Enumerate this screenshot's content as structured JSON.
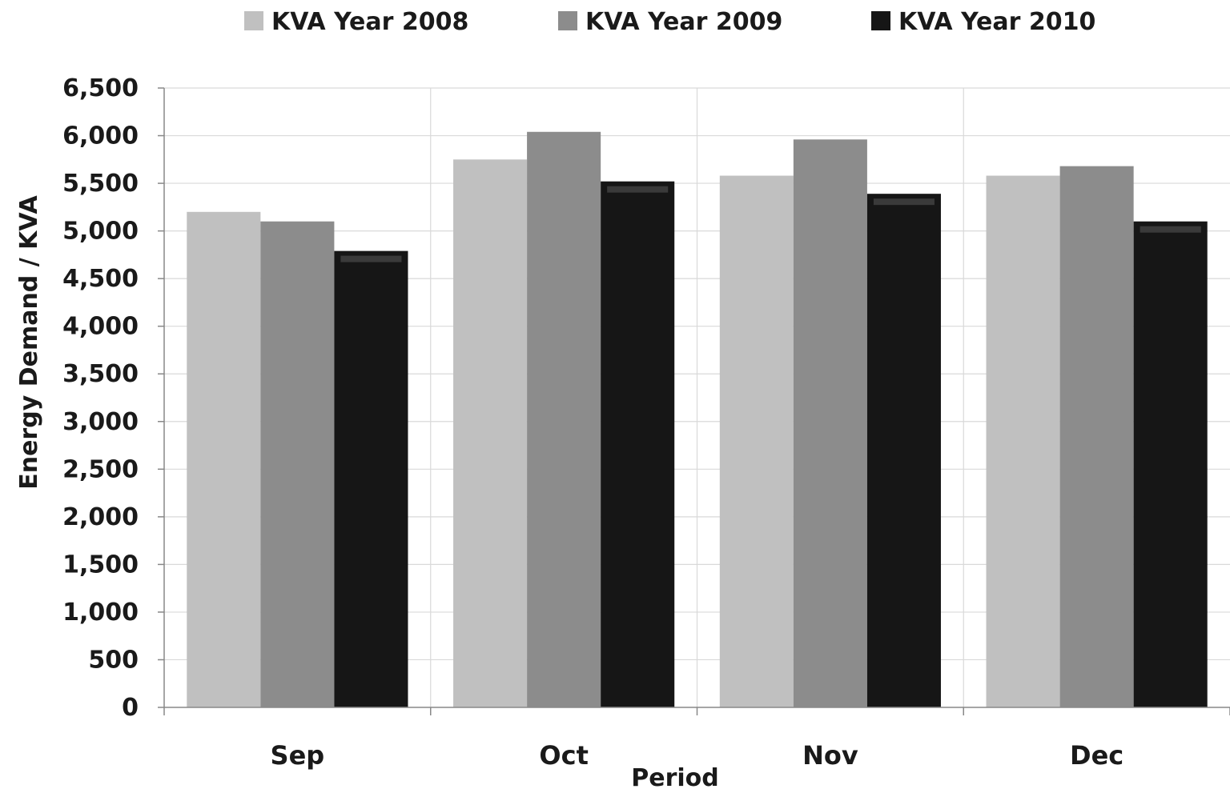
{
  "chart_data": {
    "type": "bar",
    "xlabel": "Period",
    "ylabel": "Energy Demand  / KVA",
    "categories": [
      "Sep",
      "Oct",
      "Nov",
      "Dec"
    ],
    "ylim": [
      0,
      6500
    ],
    "yticks": [
      0,
      500,
      1000,
      1500,
      2000,
      2500,
      3000,
      3500,
      4000,
      4500,
      5000,
      5500,
      6000,
      6500
    ],
    "ytick_labels": [
      "0",
      "500",
      "1,000",
      "1,500",
      "2,000",
      "2,500",
      "3,000",
      "3,500",
      "4,000",
      "4,500",
      "5,000",
      "5,500",
      "6,000",
      "6,500"
    ],
    "grid": true,
    "legend_position": "top",
    "series": [
      {
        "name": "KVA Year 2008",
        "color": "#c0c0c0",
        "values": [
          5200,
          5750,
          5580,
          5580
        ]
      },
      {
        "name": "KVA Year 2009",
        "color": "#8c8c8c",
        "values": [
          5100,
          6040,
          5960,
          5680
        ]
      },
      {
        "name": "KVA Year 2010",
        "color": "#161616",
        "values": [
          4790,
          5520,
          5390,
          5100
        ]
      }
    ]
  }
}
